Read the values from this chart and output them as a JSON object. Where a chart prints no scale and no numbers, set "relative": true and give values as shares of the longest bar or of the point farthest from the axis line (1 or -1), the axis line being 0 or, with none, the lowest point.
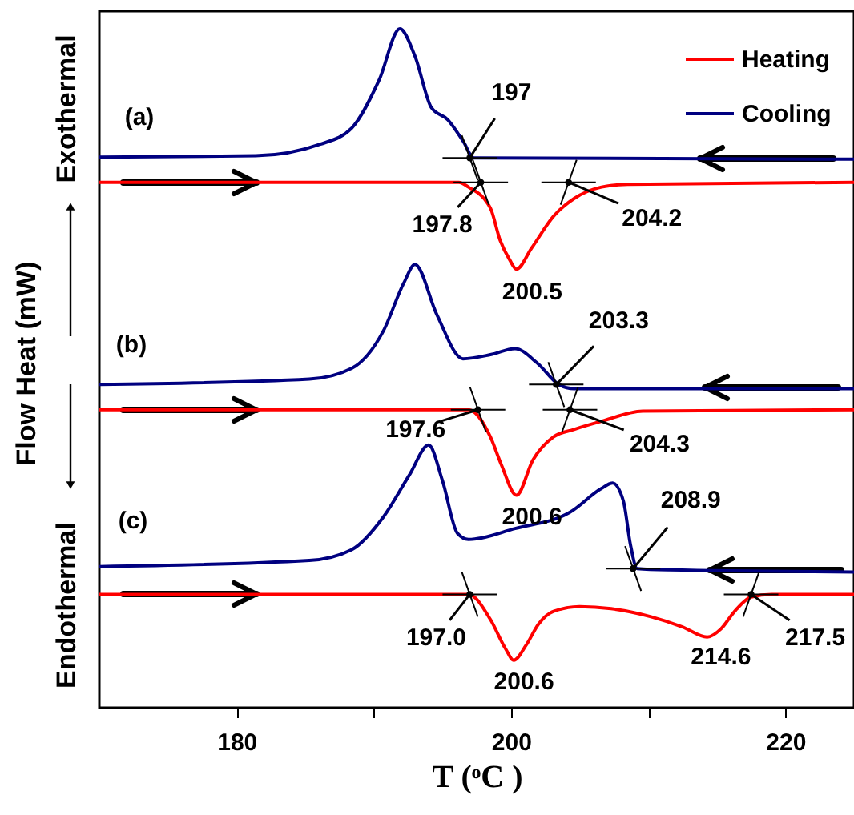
{
  "chart_data": {
    "type": "line",
    "relative": true,
    "xlabel": "T (ᵒC )",
    "ylabel": "Flow Heat (mW)",
    "xlim": [
      170,
      225
    ],
    "xticks": [
      180,
      {
        "value": 190,
        "label": null
      },
      200,
      {
        "value": 210,
        "label": null
      },
      220
    ],
    "grid": false,
    "legend": "top right",
    "tick_labels": "x",
    "line_style": "solid",
    "series": [
      {
        "name": "Heating",
        "color": "#ff0000",
        "x": [
          170,
          196.2,
          196.9,
          198.5,
          199.2,
          199.9,
          200.4,
          201.5,
          203.1,
          204.6,
          206.6,
          208.5,
          225
        ],
        "values": [
          0.774,
          0.774,
          0.767,
          0.736,
          0.689,
          0.66,
          0.646,
          0.677,
          0.724,
          0.75,
          0.767,
          0.771,
          0.774
        ]
      },
      {
        "name": "Cooling",
        "color": "#000080",
        "x": [
          170,
          181.4,
          186.1,
          188.4,
          190.4,
          191.9,
          193.0,
          194.2,
          195.4,
          196.5,
          197.3,
          225
        ],
        "values": [
          0.811,
          0.813,
          0.83,
          0.854,
          0.925,
          1.0,
          0.96,
          0.884,
          0.866,
          0.835,
          0.81,
          0.808
        ]
      },
      {
        "color": "#ff0000",
        "x": [
          170,
          196.9,
          198.5,
          199.3,
          200.4,
          201.6,
          203.1,
          204.6,
          206.6,
          209.6,
          225
        ],
        "values": [
          0.439,
          0.439,
          0.399,
          0.358,
          0.313,
          0.365,
          0.399,
          0.41,
          0.422,
          0.437,
          0.439
        ]
      },
      {
        "color": "#000080",
        "x": [
          170,
          185.3,
          188.4,
          190.7,
          192.2,
          193.0,
          194.6,
          196.5,
          198.5,
          200.3,
          201.9,
          203.5,
          204.6,
          225
        ],
        "values": [
          0.476,
          0.484,
          0.5,
          0.555,
          0.626,
          0.653,
          0.579,
          0.514,
          0.52,
          0.529,
          0.508,
          0.476,
          0.47,
          0.47
        ]
      },
      {
        "color": "#ff0000",
        "x": [
          170,
          196.9,
          198.5,
          199.6,
          200.2,
          201.1,
          202.0,
          203.1,
          205.0,
          207.3,
          210.2,
          212.5,
          214.3,
          215.3,
          216.3,
          217.5,
          219.0,
          225
        ],
        "values": [
          0.167,
          0.167,
          0.13,
          0.087,
          0.07,
          0.092,
          0.123,
          0.142,
          0.149,
          0.146,
          0.134,
          0.119,
          0.104,
          0.116,
          0.142,
          0.163,
          0.167,
          0.167
        ]
      },
      {
        "color": "#000080",
        "x": [
          170,
          185.3,
          188.4,
          190.7,
          192.6,
          194.0,
          195.0,
          196.1,
          196.9,
          200.3,
          204.3,
          206.6,
          207.4,
          208.2,
          208.7,
          209.2,
          211.5,
          225
        ],
        "values": [
          0.208,
          0.217,
          0.233,
          0.281,
          0.343,
          0.387,
          0.335,
          0.257,
          0.248,
          0.264,
          0.288,
          0.323,
          0.331,
          0.304,
          0.241,
          0.205,
          0.203,
          0.2
        ]
      }
    ],
    "annotations": [
      {
        "text": "197",
        "x": 197,
        "y": 0.81
      },
      {
        "text": "197.8",
        "x": 197.8,
        "y": 0.774
      },
      {
        "text": "204.2",
        "x": 204.2,
        "y": 0.774
      },
      {
        "text": "200.5",
        "x": 200.5,
        "y": 0.646
      },
      {
        "text": "203.3",
        "x": 203.3,
        "y": 0.476
      },
      {
        "text": "197.6",
        "x": 197.6,
        "y": 0.439
      },
      {
        "text": "204.3",
        "x": 204.3,
        "y": 0.439
      },
      {
        "text": "200.6",
        "x": 200.6,
        "y": 0.313
      },
      {
        "text": "208.9",
        "x": 208.9,
        "y": 0.205
      },
      {
        "text": "197.0",
        "x": 197.0,
        "y": 0.167
      },
      {
        "text": "200.6",
        "x": 200.6,
        "y": 0.07
      },
      {
        "text": "214.6",
        "x": 214.6,
        "y": 0.104
      },
      {
        "text": "217.5",
        "x": 217.5,
        "y": 0.167
      },
      "(a)",
      "(b)",
      "(c)",
      "Exothermal",
      "Endothermal"
    ]
  }
}
